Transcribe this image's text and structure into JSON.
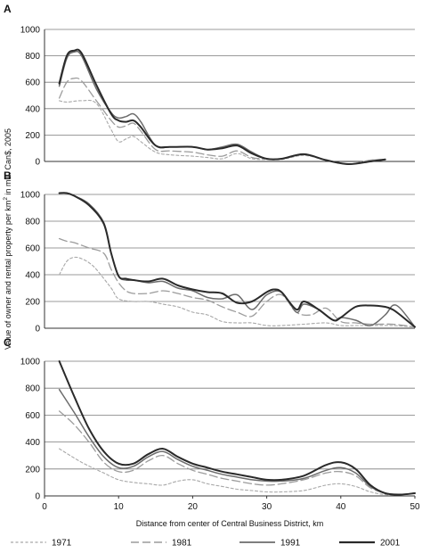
{
  "figure": {
    "ylabel_pre": "Value of owner and rental property per km",
    "ylabel_sup": "2",
    "ylabel_post": " in mill. Can$, 2005",
    "xlabel": "Distance from center of Central Business District, km"
  },
  "legend": {
    "placement": "bottom"
  },
  "chart_data": [
    {
      "type": "line",
      "panel": "A",
      "ylim": [
        0,
        1000
      ],
      "yticks": [
        "0",
        "200",
        "400",
        "600",
        "800",
        "1000"
      ],
      "xlim": [
        0,
        50
      ],
      "xticks": [],
      "grid": true,
      "series": [
        {
          "name": "1971",
          "x": [
            2,
            3,
            5,
            7,
            9,
            10,
            11,
            12,
            13,
            15,
            17,
            20,
            22,
            24,
            26,
            28,
            30,
            32,
            35,
            38,
            41,
            44,
            46
          ],
          "y": [
            460,
            450,
            460,
            440,
            240,
            150,
            170,
            190,
            150,
            70,
            50,
            40,
            30,
            20,
            60,
            20,
            15,
            15,
            45,
            10,
            -20,
            10,
            15
          ]
        },
        {
          "name": "1981",
          "x": [
            2,
            3,
            4,
            5,
            7,
            9,
            10,
            11,
            12,
            13,
            15,
            17,
            20,
            22,
            24,
            26,
            28,
            30,
            32,
            35,
            38,
            41,
            44,
            46
          ],
          "y": [
            480,
            600,
            630,
            610,
            460,
            310,
            260,
            270,
            290,
            230,
            90,
            80,
            70,
            50,
            40,
            80,
            30,
            20,
            20,
            50,
            10,
            -20,
            10,
            15
          ]
        },
        {
          "name": "1991",
          "x": [
            2,
            3,
            4,
            5,
            7,
            9,
            10,
            11,
            12,
            13,
            15,
            17,
            20,
            22,
            24,
            26,
            28,
            30,
            32,
            35,
            38,
            41,
            44,
            46
          ],
          "y": [
            570,
            780,
            830,
            800,
            550,
            370,
            330,
            340,
            360,
            300,
            120,
            110,
            110,
            90,
            110,
            130,
            70,
            20,
            20,
            55,
            10,
            -20,
            0,
            15
          ]
        },
        {
          "name": "2001",
          "x": [
            2,
            3,
            4,
            5,
            7,
            9,
            10,
            11,
            12,
            13,
            15,
            17,
            20,
            22,
            24,
            26,
            28,
            30,
            32,
            35,
            38,
            41,
            44,
            46
          ],
          "y": [
            590,
            800,
            840,
            820,
            580,
            360,
            310,
            300,
            310,
            260,
            120,
            110,
            110,
            90,
            100,
            120,
            60,
            20,
            20,
            55,
            10,
            -20,
            0,
            15
          ]
        }
      ]
    },
    {
      "type": "line",
      "panel": "B",
      "ylim": [
        0,
        1000
      ],
      "yticks": [
        "0",
        "200",
        "400",
        "600",
        "800",
        "1000"
      ],
      "xlim": [
        0,
        50
      ],
      "xticks": [],
      "grid": true,
      "series": [
        {
          "name": "1971",
          "x": [
            2,
            3,
            4,
            5,
            6,
            7,
            9,
            10,
            12,
            14,
            16,
            18,
            20,
            22,
            24,
            26,
            28,
            30,
            32,
            35,
            38,
            40,
            42,
            44,
            47,
            50
          ],
          "y": [
            400,
            500,
            530,
            520,
            490,
            440,
            300,
            220,
            200,
            200,
            180,
            160,
            120,
            100,
            50,
            40,
            40,
            20,
            20,
            30,
            40,
            20,
            20,
            20,
            20,
            10
          ]
        },
        {
          "name": "1981",
          "x": [
            2,
            3,
            4,
            6,
            8,
            9,
            10,
            11,
            12,
            14,
            16,
            18,
            20,
            22,
            24,
            26,
            28,
            30,
            32,
            34,
            36,
            38,
            40,
            42,
            44,
            47,
            50
          ],
          "y": [
            670,
            650,
            640,
            600,
            560,
            440,
            340,
            280,
            260,
            260,
            280,
            260,
            230,
            210,
            160,
            120,
            90,
            200,
            250,
            120,
            100,
            150,
            50,
            40,
            30,
            30,
            10
          ]
        },
        {
          "name": "1991",
          "x": [
            2,
            3,
            4,
            6,
            8,
            9,
            10,
            11,
            12,
            14,
            16,
            18,
            20,
            22,
            24,
            26,
            28,
            30,
            32,
            34,
            35,
            37,
            39,
            40,
            42,
            44,
            46,
            47,
            48,
            50
          ],
          "y": [
            1010,
            1010,
            990,
            930,
            790,
            560,
            390,
            360,
            360,
            340,
            350,
            300,
            280,
            230,
            220,
            250,
            140,
            250,
            270,
            120,
            180,
            140,
            60,
            80,
            60,
            20,
            100,
            170,
            150,
            10
          ]
        },
        {
          "name": "2001",
          "x": [
            2,
            3,
            4,
            6,
            8,
            9,
            10,
            11,
            12,
            14,
            16,
            18,
            20,
            22,
            24,
            26,
            28,
            30,
            31,
            32,
            34,
            35,
            37,
            39,
            40,
            42,
            44,
            46,
            47,
            48,
            50
          ],
          "y": [
            1010,
            1010,
            990,
            920,
            780,
            560,
            390,
            370,
            360,
            350,
            370,
            320,
            290,
            270,
            260,
            190,
            200,
            270,
            290,
            270,
            140,
            200,
            140,
            60,
            80,
            160,
            170,
            160,
            140,
            100,
            10
          ]
        }
      ]
    },
    {
      "type": "line",
      "panel": "C",
      "ylim": [
        0,
        1000
      ],
      "yticks": [
        "0",
        "200",
        "400",
        "600",
        "800",
        "1000"
      ],
      "xlim": [
        0,
        50
      ],
      "xticks": [
        "0",
        "10",
        "20",
        "30",
        "40",
        "50"
      ],
      "grid": true,
      "series": [
        {
          "name": "1971",
          "x": [
            2,
            5,
            8,
            10,
            12,
            14,
            16,
            18,
            20,
            22,
            24,
            26,
            28,
            30,
            32,
            35,
            38,
            40,
            42,
            44,
            46,
            48,
            50
          ],
          "y": [
            350,
            250,
            170,
            120,
            100,
            90,
            80,
            110,
            120,
            90,
            70,
            50,
            40,
            30,
            30,
            40,
            80,
            90,
            70,
            30,
            10,
            10,
            20
          ]
        },
        {
          "name": "1981",
          "x": [
            2,
            4,
            6,
            8,
            10,
            12,
            14,
            16,
            18,
            20,
            22,
            24,
            26,
            28,
            30,
            32,
            35,
            38,
            40,
            42,
            44,
            46,
            48,
            50
          ],
          "y": [
            630,
            530,
            400,
            250,
            180,
            190,
            260,
            300,
            240,
            190,
            160,
            130,
            110,
            90,
            80,
            90,
            120,
            170,
            180,
            150,
            60,
            20,
            10,
            20
          ]
        },
        {
          "name": "1991",
          "x": [
            2,
            4,
            6,
            8,
            10,
            12,
            14,
            16,
            18,
            20,
            22,
            24,
            26,
            28,
            30,
            32,
            35,
            38,
            40,
            42,
            44,
            46,
            48,
            50
          ],
          "y": [
            790,
            620,
            440,
            290,
            210,
            220,
            290,
            330,
            270,
            220,
            190,
            160,
            140,
            120,
            110,
            110,
            130,
            190,
            210,
            170,
            70,
            20,
            10,
            20
          ]
        },
        {
          "name": "2001",
          "x": [
            2,
            4,
            6,
            8,
            10,
            12,
            14,
            16,
            18,
            20,
            22,
            24,
            26,
            28,
            30,
            32,
            35,
            38,
            40,
            42,
            44,
            46,
            48,
            50
          ],
          "y": [
            1000,
            740,
            500,
            330,
            240,
            240,
            310,
            350,
            290,
            240,
            210,
            180,
            160,
            140,
            120,
            120,
            150,
            230,
            250,
            200,
            80,
            20,
            10,
            20
          ]
        }
      ]
    }
  ]
}
